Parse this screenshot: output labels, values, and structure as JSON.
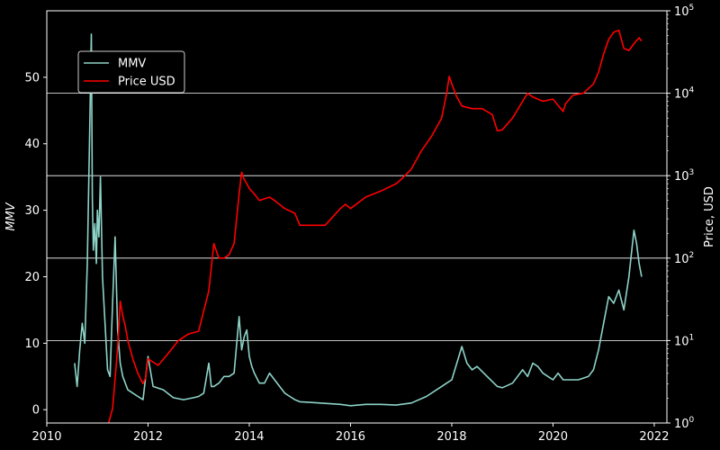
{
  "chart_data": {
    "type": "line",
    "title": "",
    "xlabel": "",
    "ylabel_left": "MMV",
    "ylabel_right": "Price, USD",
    "xlim": [
      2010.0,
      2022.25
    ],
    "ylim_left": [
      -2,
      60
    ],
    "ylim_right_log10": [
      0,
      5
    ],
    "y_scale_right": "log",
    "x_ticks": [
      "2010",
      "2012",
      "2014",
      "2016",
      "2018",
      "2020",
      "2022"
    ],
    "y_ticks_left": [
      "0",
      "10",
      "20",
      "30",
      "40",
      "50"
    ],
    "y_ticks_right": [
      "10",
      "10",
      "10",
      "10",
      "10",
      "10"
    ],
    "y_ticks_right_exp": [
      "0",
      "1",
      "2",
      "3",
      "4",
      "5"
    ],
    "grid": "horizontal lines at right-axis decades",
    "legend_position": "upper-left",
    "colors": {
      "mmv": "#8dd3c7",
      "price": "#ff0000",
      "background": "#000000",
      "axes": "#ffffff"
    },
    "series": [
      {
        "name": "MMV",
        "axis": "left",
        "color": "#8dd3c7",
        "x": [
          2010.55,
          2010.6,
          2010.65,
          2010.7,
          2010.75,
          2010.8,
          2010.85,
          2010.88,
          2010.9,
          2010.92,
          2010.95,
          2010.98,
          2011.0,
          2011.03,
          2011.06,
          2011.1,
          2011.15,
          2011.2,
          2011.25,
          2011.3,
          2011.35,
          2011.4,
          2011.45,
          2011.5,
          2011.55,
          2011.6,
          2011.7,
          2011.8,
          2011.9,
          2012.0,
          2012.1,
          2012.3,
          2012.5,
          2012.7,
          2012.9,
          2013.0,
          2013.1,
          2013.2,
          2013.25,
          2013.3,
          2013.4,
          2013.5,
          2013.6,
          2013.7,
          2013.8,
          2013.85,
          2013.9,
          2013.95,
          2014.0,
          2014.05,
          2014.1,
          2014.2,
          2014.3,
          2014.4,
          2014.5,
          2014.6,
          2014.7,
          2014.8,
          2014.9,
          2015.0,
          2015.2,
          2015.4,
          2015.6,
          2015.8,
          2016.0,
          2016.3,
          2016.6,
          2016.9,
          2017.2,
          2017.5,
          2017.8,
          2017.9,
          2018.0,
          2018.1,
          2018.2,
          2018.3,
          2018.4,
          2018.5,
          2018.7,
          2018.9,
          2019.0,
          2019.2,
          2019.4,
          2019.5,
          2019.6,
          2019.7,
          2019.8,
          2020.0,
          2020.1,
          2020.2,
          2020.3,
          2020.5,
          2020.7,
          2020.8,
          2020.9,
          2021.0,
          2021.1,
          2021.2,
          2021.3,
          2021.4,
          2021.5,
          2021.6,
          2021.65,
          2021.7,
          2021.75
        ],
        "y": [
          7,
          3.5,
          9,
          13,
          10,
          22,
          43,
          56.5,
          32,
          24,
          28,
          22,
          30,
          26,
          35,
          20,
          13,
          6,
          5,
          16,
          26,
          12,
          7,
          5,
          4,
          3,
          2.5,
          2,
          1.5,
          8,
          3.5,
          3,
          1.8,
          1.5,
          1.8,
          2,
          2.5,
          7,
          3.5,
          3.5,
          4,
          5,
          5,
          5.5,
          14,
          9,
          11,
          12,
          8,
          6.5,
          5.5,
          4,
          4,
          5.5,
          4.5,
          3.5,
          2.5,
          2,
          1.5,
          1.2,
          1.1,
          1.0,
          0.9,
          0.8,
          0.6,
          0.8,
          0.8,
          0.7,
          1.0,
          2,
          3.5,
          4,
          4.5,
          7,
          9.5,
          7,
          6,
          6.5,
          5,
          3.5,
          3.3,
          4,
          6,
          5,
          7,
          6.5,
          5.5,
          4.5,
          5.5,
          4.5,
          4.5,
          4.5,
          5,
          6,
          9,
          13,
          17,
          16,
          18,
          15,
          20,
          27,
          25,
          22,
          20
        ]
      },
      {
        "name": "Price USD",
        "axis": "right",
        "color": "#ff0000",
        "x": [
          2011.05,
          2011.15,
          2011.2,
          2011.3,
          2011.4,
          2011.45,
          2011.5,
          2011.55,
          2011.6,
          2011.7,
          2011.8,
          2011.9,
          2011.95,
          2012.0,
          2012.2,
          2012.4,
          2012.6,
          2012.8,
          2013.0,
          2013.2,
          2013.3,
          2013.4,
          2013.5,
          2013.6,
          2013.7,
          2013.8,
          2013.85,
          2013.9,
          2013.95,
          2014.0,
          2014.1,
          2014.2,
          2014.4,
          2014.5,
          2014.7,
          2014.9,
          2015.0,
          2015.2,
          2015.5,
          2015.8,
          2015.9,
          2016.0,
          2016.3,
          2016.6,
          2016.9,
          2017.0,
          2017.2,
          2017.4,
          2017.6,
          2017.8,
          2017.9,
          2017.95,
          2018.0,
          2018.1,
          2018.2,
          2018.4,
          2018.6,
          2018.8,
          2018.9,
          2019.0,
          2019.2,
          2019.4,
          2019.5,
          2019.6,
          2019.8,
          2020.0,
          2020.2,
          2020.25,
          2020.4,
          2020.6,
          2020.8,
          2020.9,
          2021.0,
          2021.1,
          2021.2,
          2021.3,
          2021.4,
          2021.5,
          2021.6,
          2021.7,
          2021.75
        ],
        "y": [
          1,
          0.8,
          0.9,
          1.5,
          8,
          30,
          20,
          15,
          10,
          6,
          4,
          3,
          3.5,
          6,
          5,
          7,
          10,
          12,
          13,
          40,
          150,
          100,
          100,
          110,
          150,
          600,
          1100,
          900,
          800,
          700,
          600,
          500,
          550,
          500,
          400,
          350,
          250,
          250,
          250,
          400,
          450,
          400,
          550,
          650,
          800,
          900,
          1200,
          2000,
          3000,
          5000,
          10000,
          16000,
          13000,
          9000,
          7000,
          6500,
          6500,
          5500,
          3500,
          3600,
          5000,
          8000,
          10000,
          9000,
          8000,
          8500,
          6000,
          7500,
          9500,
          10000,
          13000,
          18000,
          30000,
          45000,
          55000,
          58000,
          35000,
          33000,
          40000,
          47000,
          43000
        ]
      }
    ]
  }
}
